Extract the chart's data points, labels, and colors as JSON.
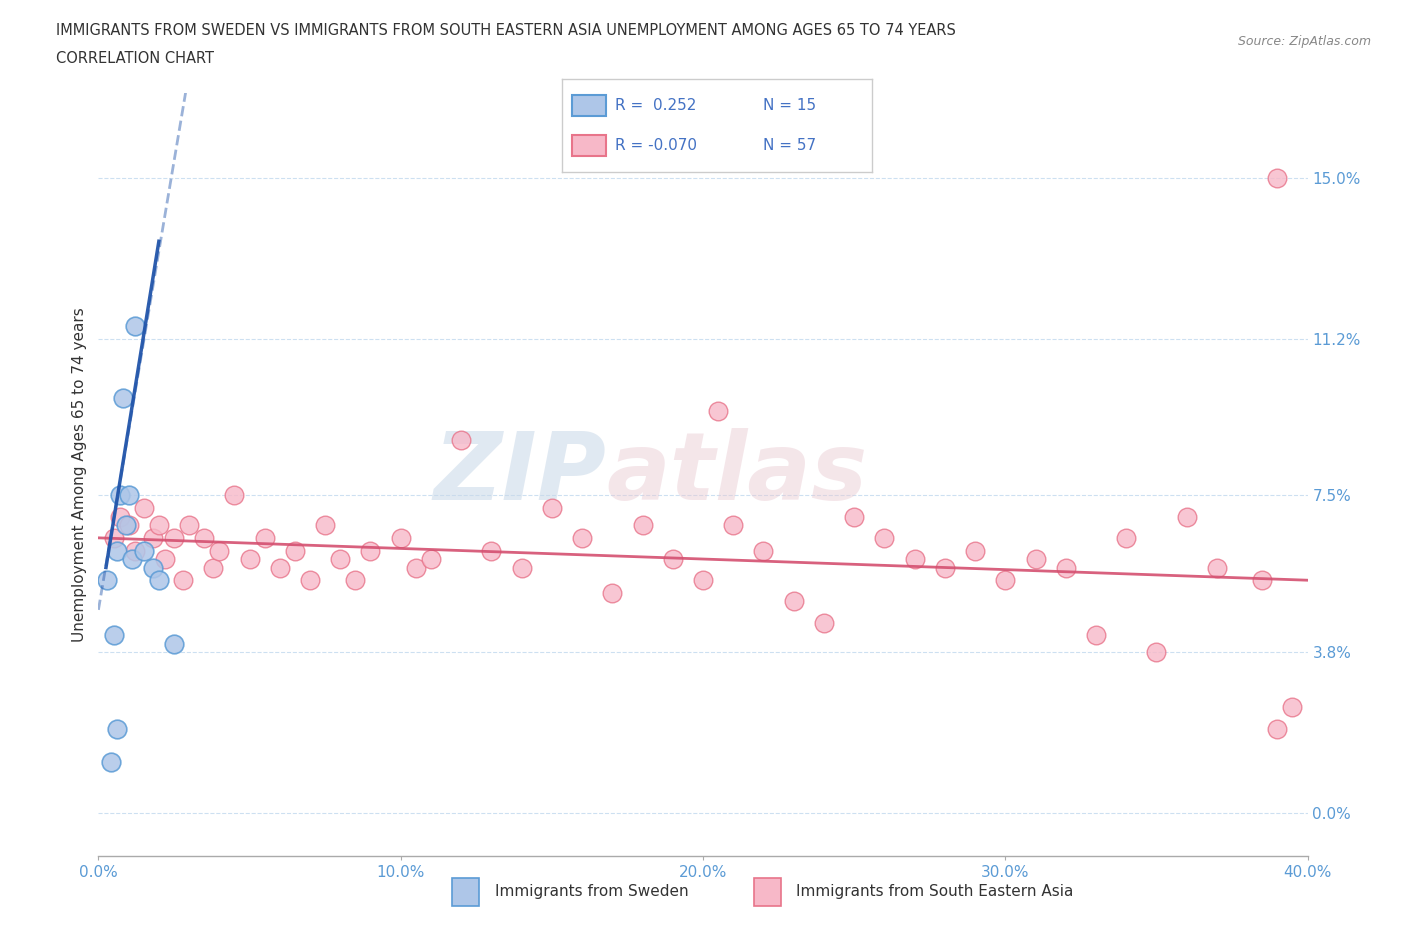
{
  "title_line1": "IMMIGRANTS FROM SWEDEN VS IMMIGRANTS FROM SOUTH EASTERN ASIA UNEMPLOYMENT AMONG AGES 65 TO 74 YEARS",
  "title_line2": "CORRELATION CHART",
  "source": "Source: ZipAtlas.com",
  "ylabel": "Unemployment Among Ages 65 to 74 years",
  "xlim": [
    0.0,
    40.0
  ],
  "ylim": [
    -1.0,
    17.0
  ],
  "yticks": [
    0.0,
    3.8,
    7.5,
    11.2,
    15.0
  ],
  "ytick_labels": [
    "0.0%",
    "3.8%",
    "7.5%",
    "11.2%",
    "15.0%"
  ],
  "xticks": [
    0.0,
    10.0,
    20.0,
    30.0,
    40.0
  ],
  "xtick_labels": [
    "0.0%",
    "10.0%",
    "20.0%",
    "30.0%",
    "40.0%"
  ],
  "sweden_color": "#aec6e8",
  "sea_color": "#f7b8c8",
  "sweden_edge": "#5b9bd5",
  "sea_edge": "#e8748a",
  "trend_blue": "#2255aa",
  "trend_pink": "#d45070",
  "watermark_color": "#c8d8e8",
  "watermark_color2": "#e8c8d0",
  "sweden_x": [
    0.3,
    0.5,
    0.6,
    0.7,
    0.8,
    0.9,
    1.0,
    1.1,
    1.2,
    1.5,
    1.8,
    2.0,
    2.5,
    0.4,
    0.6
  ],
  "sweden_y": [
    5.5,
    4.2,
    6.2,
    7.5,
    9.8,
    6.8,
    7.5,
    6.0,
    11.5,
    6.2,
    5.8,
    5.5,
    4.0,
    1.2,
    2.0
  ],
  "sea_x": [
    0.5,
    0.7,
    1.0,
    1.2,
    1.5,
    1.8,
    2.0,
    2.2,
    2.5,
    2.8,
    3.0,
    3.5,
    3.8,
    4.0,
    4.5,
    5.0,
    5.5,
    6.0,
    6.5,
    7.0,
    7.5,
    8.0,
    8.5,
    9.0,
    10.0,
    10.5,
    11.0,
    12.0,
    13.0,
    14.0,
    15.0,
    16.0,
    17.0,
    18.0,
    19.0,
    20.0,
    21.0,
    22.0,
    23.0,
    24.0,
    25.0,
    26.0,
    27.0,
    28.0,
    29.0,
    30.0,
    31.0,
    32.0,
    33.0,
    34.0,
    35.0,
    36.0,
    37.0,
    38.5,
    39.0,
    39.5,
    20.5
  ],
  "sea_y": [
    6.5,
    7.0,
    6.8,
    6.2,
    7.2,
    6.5,
    6.8,
    6.0,
    6.5,
    5.5,
    6.8,
    6.5,
    5.8,
    6.2,
    7.5,
    6.0,
    6.5,
    5.8,
    6.2,
    5.5,
    6.8,
    6.0,
    5.5,
    6.2,
    6.5,
    5.8,
    6.0,
    8.8,
    6.2,
    5.8,
    7.2,
    6.5,
    5.2,
    6.8,
    6.0,
    5.5,
    6.8,
    6.2,
    5.0,
    4.5,
    7.0,
    6.5,
    6.0,
    5.8,
    6.2,
    5.5,
    6.0,
    5.8,
    4.2,
    6.5,
    3.8,
    7.0,
    5.8,
    5.5,
    2.0,
    2.5,
    9.5
  ],
  "sea_extra_x": [
    39.0
  ],
  "sea_extra_y": [
    15.0
  ]
}
